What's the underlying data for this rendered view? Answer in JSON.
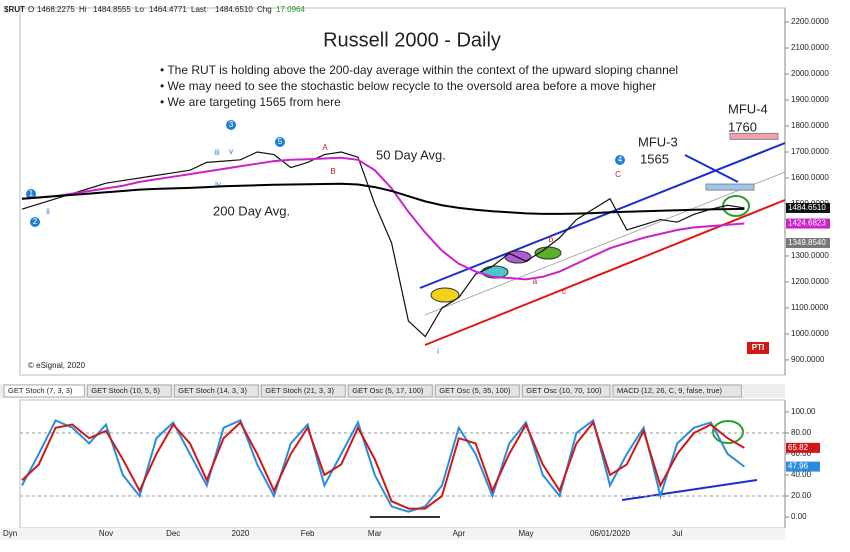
{
  "quote": {
    "symbol": "$RUT",
    "fields": [
      {
        "label": "O",
        "value": "1468.2275"
      },
      {
        "label": "Hi",
        "value": "1484.8555"
      },
      {
        "label": "Lo",
        "value": "1464.4771"
      },
      {
        "label": "Last",
        "value": "1484.6510"
      },
      {
        "label": "Chg",
        "value": "17.0964"
      }
    ]
  },
  "notes": [
    "• The RUT is holding above the 200-day average within the context of the upward sloping channel",
    "• We may need to see the stochastic below recycle to the oversold area before a move higher",
    "• We are targeting 1565 from here"
  ],
  "annotations": {
    "copyright": "© eSignal, 2020",
    "logo": "PTI",
    "waves": [
      "1",
      "2",
      "3",
      "4",
      "5",
      "A",
      "B",
      "C",
      "a",
      "b",
      "c",
      "i",
      "ii",
      "iii",
      "iv",
      "v"
    ]
  },
  "tabs": [
    "GET Stoch (7, 3, 3)",
    "GET Stoch (10, 5, 5)",
    "GET Stoch (14, 3, 3)",
    "GET Stoch (21, 3, 3)",
    "GET Osc (5, 17, 100)",
    "GET Osc (5, 35, 100)",
    "GET Osc (10, 70, 100)",
    "MACD (12, 26, C, 9, false, true)"
  ],
  "corner": "Dyn",
  "chart_data": [
    {
      "type": "line",
      "title": "Russell 2000 - Daily",
      "series": [
        {
          "color": "#111111",
          "values": [
            1480,
            1500,
            1520,
            1540,
            1560,
            1580,
            1590,
            1600,
            1610,
            1620,
            1630,
            1660,
            1665,
            1670,
            1700,
            1690,
            1640,
            1660,
            1690,
            1700,
            1680,
            1500,
            1350,
            1050,
            990,
            1100,
            1140,
            1230,
            1260,
            1310,
            1280,
            1320,
            1370,
            1440,
            1480,
            1520,
            1400,
            1420,
            1440,
            1430,
            1460,
            1480,
            1495,
            1484.651
          ]
        },
        {
          "name": "50 Day Avg.",
          "color": "#cc22cc",
          "values": [
            1520,
            1525,
            1530,
            1540,
            1550,
            1560,
            1570,
            1585,
            1595,
            1605,
            1615,
            1625,
            1635,
            1645,
            1655,
            1665,
            1670,
            1672,
            1675,
            1678,
            1670,
            1630,
            1560,
            1470,
            1390,
            1320,
            1270,
            1240,
            1220,
            1215,
            1210,
            1220,
            1240,
            1270,
            1300,
            1330,
            1350,
            1370,
            1385,
            1400,
            1410,
            1415,
            1420,
            1424.68
          ]
        },
        {
          "name": "200 Day Avg.",
          "color": "#000000",
          "values": [
            1520,
            1525,
            1530,
            1535,
            1540,
            1545,
            1550,
            1555,
            1558,
            1560,
            1562,
            1565,
            1568,
            1570,
            1572,
            1574,
            1575,
            1576,
            1577,
            1578,
            1575,
            1565,
            1550,
            1530,
            1510,
            1495,
            1485,
            1478,
            1472,
            1468,
            1464,
            1462,
            1462,
            1463,
            1465,
            1468,
            1470,
            1472,
            1474,
            1476,
            1478,
            1479,
            1480,
            1481
          ]
        }
      ],
      "price_labels": [
        {
          "value": 1484.651,
          "label": "1484.6510",
          "color": "#111111"
        },
        {
          "value": 1424.6823,
          "label": "1424.6823",
          "color": "#cc22cc"
        },
        {
          "value": 1349.854,
          "label": "1349.8540",
          "color": "#777777"
        }
      ],
      "targets": [
        {
          "name": "MFU-3",
          "value": 1565
        },
        {
          "name": "MFU-4",
          "value": 1760
        }
      ],
      "ylim": [
        842,
        2254
      ],
      "yticks": [
        {
          "value": 2200,
          "label": "2200.0000"
        },
        {
          "value": 2100,
          "label": "2100.0000"
        },
        {
          "value": 2000,
          "label": "2000.0000"
        },
        {
          "value": 1900,
          "label": "1900.0000"
        },
        {
          "value": 1800,
          "label": "1800.0000"
        },
        {
          "value": 1700,
          "label": "1700.0000"
        },
        {
          "value": 1600,
          "label": "1600.0000"
        },
        {
          "value": 1500,
          "label": "1500.0000"
        },
        {
          "value": 1300,
          "label": "1300.0000"
        },
        {
          "value": 1200,
          "label": "1200.0000"
        },
        {
          "value": 1100,
          "label": "1100.0000"
        },
        {
          "value": 1000,
          "label": "1000.0000"
        },
        {
          "value": 900,
          "label": "900.0000"
        }
      ]
    },
    {
      "type": "line",
      "categories": [
        null,
        null,
        null,
        null,
        null,
        "Nov",
        null,
        null,
        null,
        "Dec",
        null,
        null,
        null,
        "2020",
        null,
        null,
        null,
        "Feb",
        null,
        null,
        null,
        "Mar",
        null,
        null,
        null,
        null,
        "Apr",
        null,
        null,
        null,
        "May",
        null,
        null,
        null,
        null,
        "06/01/2020",
        null,
        null,
        null,
        "Jul",
        null,
        null,
        null,
        null
      ],
      "series": [
        {
          "color": "#2a8ce0",
          "values": [
            30,
            60,
            92,
            85,
            70,
            88,
            40,
            20,
            75,
            90,
            60,
            30,
            85,
            92,
            50,
            20,
            70,
            88,
            30,
            60,
            90,
            40,
            10,
            5,
            10,
            30,
            85,
            60,
            20,
            70,
            90,
            40,
            20,
            80,
            92,
            30,
            60,
            85,
            20,
            70,
            85,
            90,
            60,
            47.96
          ]
        },
        {
          "color": "#d01818",
          "values": [
            35,
            50,
            85,
            88,
            75,
            82,
            55,
            25,
            60,
            88,
            70,
            35,
            75,
            90,
            60,
            25,
            60,
            85,
            40,
            50,
            85,
            55,
            15,
            8,
            8,
            20,
            75,
            70,
            25,
            60,
            88,
            50,
            25,
            70,
            90,
            40,
            50,
            82,
            30,
            60,
            80,
            88,
            75,
            65.82
          ]
        }
      ],
      "ylim": [
        -10.5,
        111.4
      ],
      "yticks": [
        {
          "value": 100,
          "label": "100.00"
        },
        {
          "value": 80,
          "label": "80.00"
        },
        {
          "value": 60,
          "label": "60.00"
        },
        {
          "value": 40,
          "label": "40.00"
        },
        {
          "value": 20,
          "label": "20.00"
        },
        {
          "value": 0,
          "label": "0.00"
        }
      ]
    }
  ]
}
